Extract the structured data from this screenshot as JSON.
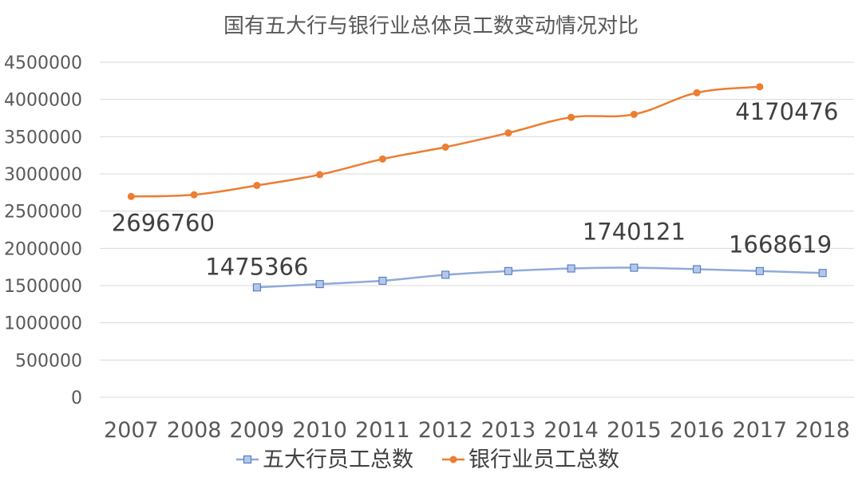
{
  "chart_data": {
    "type": "line",
    "title": "国有五大行与银行业总体员工数变动情况对比",
    "xlabel": "",
    "ylabel": "",
    "categories": [
      "2007",
      "2008",
      "2009",
      "2010",
      "2011",
      "2012",
      "2013",
      "2014",
      "2015",
      "2016",
      "2017",
      "2018"
    ],
    "ylim": [
      0,
      4500000
    ],
    "yticks": [
      0,
      500000,
      1000000,
      1500000,
      2000000,
      2500000,
      3000000,
      3500000,
      4000000,
      4500000
    ],
    "grid": true,
    "legend": "bottom",
    "series": [
      {
        "name": "五大行员工总数",
        "color": "#8faadc",
        "marker": "square",
        "values": [
          null,
          null,
          1475366,
          1520000,
          1565000,
          1645000,
          1695000,
          1730000,
          1740121,
          1720000,
          1695000,
          1668619
        ],
        "data_labels": [
          {
            "category": "2009",
            "text": "1475366"
          },
          {
            "category": "2015",
            "text": "1740121"
          },
          {
            "category": "2018",
            "text": "1668619"
          }
        ]
      },
      {
        "name": "银行业员工总数",
        "color": "#ed7d31",
        "marker": "circle",
        "values": [
          2696760,
          2720000,
          2845000,
          2990000,
          3200000,
          3360000,
          3550000,
          3760000,
          3800000,
          4090000,
          4170476,
          null
        ],
        "data_labels": [
          {
            "category": "2007",
            "text": "2696760"
          },
          {
            "category": "2017",
            "text": "4170476"
          }
        ]
      }
    ]
  }
}
